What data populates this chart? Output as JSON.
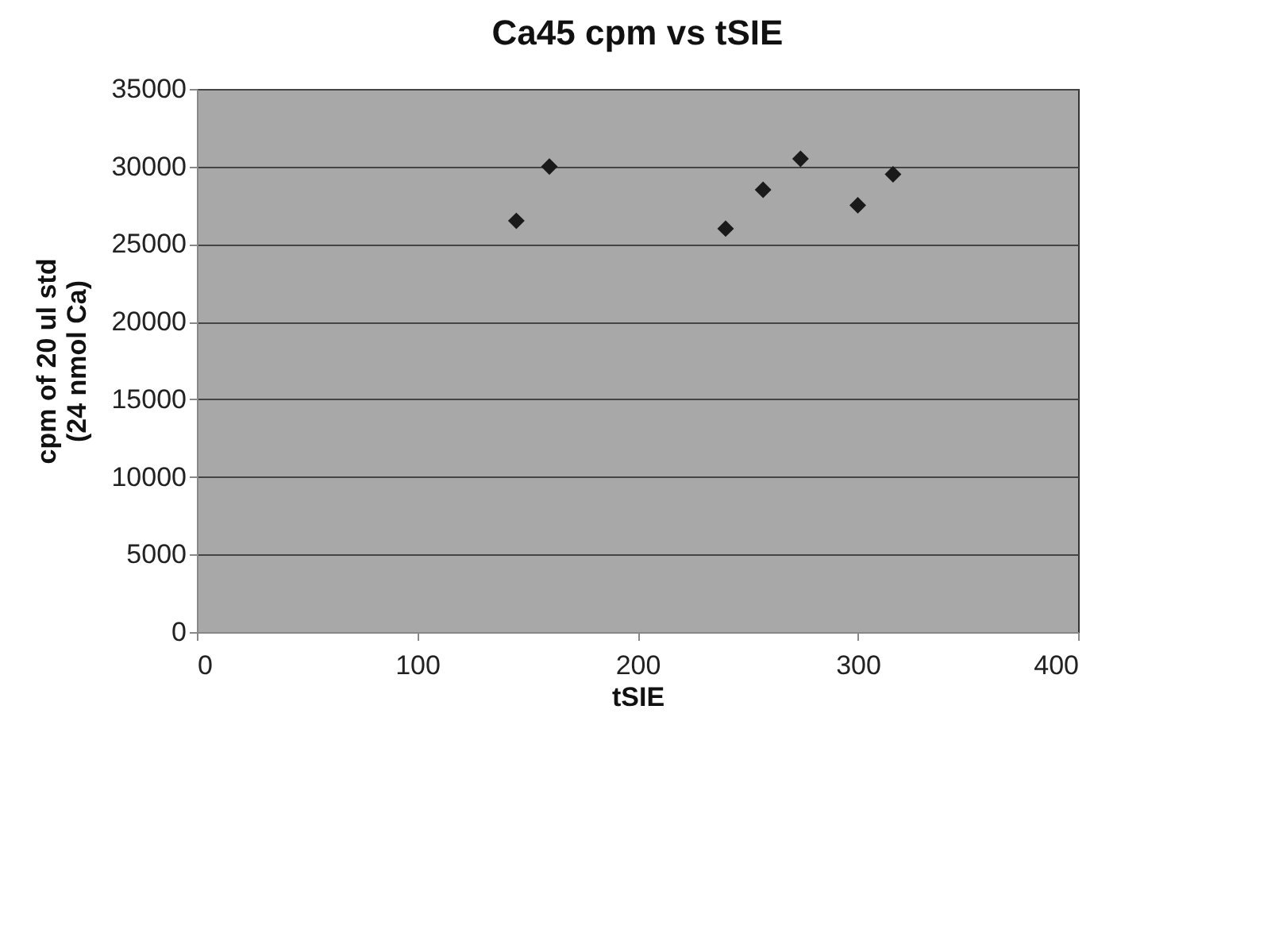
{
  "chart_data": {
    "type": "scatter",
    "title": "Ca45 cpm vs tSIE",
    "xlabel": "tSIE",
    "ylabel": "cpm of 20 ul std (24 nmol Ca)",
    "x": [
      145,
      160,
      240,
      257,
      274,
      300,
      316
    ],
    "series": [
      {
        "color": "#1a1a1a",
        "values": [
          26500,
          30000,
          26000,
          28500,
          30500,
          27500,
          29500
        ]
      }
    ],
    "xlim": [
      0,
      400
    ],
    "xticks": [
      0,
      100,
      200,
      300,
      400
    ],
    "ylim": [
      0,
      35000
    ],
    "yticks": [
      0,
      5000,
      10000,
      15000,
      20000,
      25000,
      30000,
      35000
    ],
    "grid": "y",
    "marker": "diamond",
    "legend": false
  }
}
